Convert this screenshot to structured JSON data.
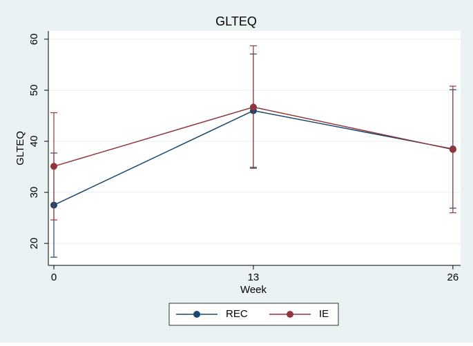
{
  "chart_data": {
    "type": "line",
    "title": "GLTEQ",
    "x_label": "Week",
    "y_label": "GLTEQ",
    "x": [
      0,
      13,
      26
    ],
    "series": [
      {
        "name": "REC",
        "color": "#1a476f",
        "values": [
          27.5,
          46.0,
          38.5
        ],
        "errors": [
          10.2,
          11.1,
          11.6
        ]
      },
      {
        "name": "IE",
        "color": "#90353b",
        "values": [
          35.1,
          46.7,
          38.4
        ],
        "errors": [
          10.5,
          12.0,
          12.4
        ]
      }
    ],
    "xlim": [
      -0.36,
      26.5
    ],
    "xticks": [
      0,
      13,
      26
    ],
    "ylim": [
      15.7,
      61.6
    ],
    "yticks": [
      20,
      30,
      40,
      50,
      60
    ],
    "grid": true,
    "legend": "bottom"
  }
}
